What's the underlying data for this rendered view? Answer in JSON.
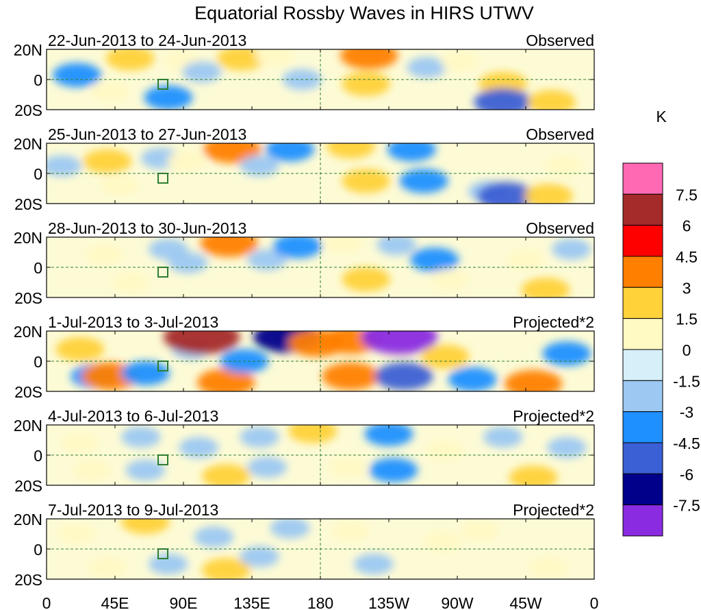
{
  "chart_data": {
    "type": "heatmap",
    "title": "Equatorial Rossby Waves in HIRS UTWV",
    "units": "K",
    "x_ticks": [
      "0",
      "45E",
      "90E",
      "135E",
      "180",
      "135W",
      "90W",
      "45W",
      "0"
    ],
    "y_ticks": [
      "20N",
      "0",
      "20S"
    ],
    "xlim": [
      0,
      360
    ],
    "ylim": [
      -20,
      20
    ],
    "colorbar": {
      "levels": [
        "-7.5",
        "-6",
        "-4.5",
        "-3",
        "-1.5",
        "0",
        "1.5",
        "3",
        "4.5",
        "6",
        "7.5"
      ],
      "colors": [
        "#8a2be2",
        "#00008b",
        "#3b5fd4",
        "#1e90ff",
        "#9cc8f2",
        "#d6f0fa",
        "#fff9c4",
        "#ffd23a",
        "#ff7f00",
        "#ff0000",
        "#a52a2a",
        "#ff69b4"
      ]
    },
    "panels": [
      {
        "date_range": "22-Jun-2013 to 24-Jun-2013",
        "label": "Observed",
        "blobs": [
          {
            "lon": 20,
            "lat": 3,
            "value": -3
          },
          {
            "lon": 42,
            "lat": -8,
            "value": 1.5
          },
          {
            "lon": 55,
            "lat": 14,
            "value": 3
          },
          {
            "lon": 80,
            "lat": -12,
            "value": -3
          },
          {
            "lon": 90,
            "lat": 12,
            "value": 1.5
          },
          {
            "lon": 102,
            "lat": 5,
            "value": -1.5
          },
          {
            "lon": 128,
            "lat": 14,
            "value": 3
          },
          {
            "lon": 150,
            "lat": 16,
            "value": 1.5
          },
          {
            "lon": 168,
            "lat": 0,
            "value": -1.5
          },
          {
            "lon": 210,
            "lat": -3,
            "value": 3
          },
          {
            "lon": 212,
            "lat": 16,
            "value": 4.5
          },
          {
            "lon": 250,
            "lat": 8,
            "value": -1.5
          },
          {
            "lon": 272,
            "lat": 12,
            "value": 1.5
          },
          {
            "lon": 300,
            "lat": -3,
            "value": 3
          },
          {
            "lon": 300,
            "lat": -15,
            "value": -4.5
          },
          {
            "lon": 332,
            "lat": -15,
            "value": 3
          }
        ]
      },
      {
        "date_range": "25-Jun-2013 to 27-Jun-2013",
        "label": "Observed",
        "blobs": [
          {
            "lon": 10,
            "lat": 5,
            "value": -1.5
          },
          {
            "lon": 40,
            "lat": 8,
            "value": 3
          },
          {
            "lon": 48,
            "lat": -8,
            "value": 1.5
          },
          {
            "lon": 75,
            "lat": 10,
            "value": -1.5
          },
          {
            "lon": 92,
            "lat": 8,
            "value": 1.5
          },
          {
            "lon": 122,
            "lat": 16,
            "value": 4.5
          },
          {
            "lon": 140,
            "lat": 5,
            "value": -1.5
          },
          {
            "lon": 160,
            "lat": 16,
            "value": -3
          },
          {
            "lon": 200,
            "lat": 18,
            "value": 3
          },
          {
            "lon": 210,
            "lat": -5,
            "value": 3
          },
          {
            "lon": 240,
            "lat": 16,
            "value": -3
          },
          {
            "lon": 248,
            "lat": -5,
            "value": -3
          },
          {
            "lon": 290,
            "lat": -12,
            "value": -1.5
          },
          {
            "lon": 302,
            "lat": -15,
            "value": -4.5
          },
          {
            "lon": 330,
            "lat": -15,
            "value": 3
          },
          {
            "lon": 340,
            "lat": 5,
            "value": 1.5
          }
        ]
      },
      {
        "date_range": "28-Jun-2013 to 30-Jun-2013",
        "label": "Observed",
        "blobs": [
          {
            "lon": 38,
            "lat": 8,
            "value": 1.5
          },
          {
            "lon": 55,
            "lat": -10,
            "value": 1.5
          },
          {
            "lon": 80,
            "lat": 12,
            "value": -1.5
          },
          {
            "lon": 93,
            "lat": 3,
            "value": -1.5
          },
          {
            "lon": 120,
            "lat": 16,
            "value": 4.5
          },
          {
            "lon": 145,
            "lat": 5,
            "value": -1.5
          },
          {
            "lon": 165,
            "lat": 14,
            "value": -3
          },
          {
            "lon": 195,
            "lat": 16,
            "value": 1.5
          },
          {
            "lon": 210,
            "lat": -8,
            "value": 3
          },
          {
            "lon": 230,
            "lat": 15,
            "value": -1.5
          },
          {
            "lon": 255,
            "lat": 5,
            "value": -3
          },
          {
            "lon": 265,
            "lat": -8,
            "value": 1.5
          },
          {
            "lon": 315,
            "lat": 5,
            "value": 1.5
          },
          {
            "lon": 328,
            "lat": -15,
            "value": 3
          },
          {
            "lon": 345,
            "lat": 12,
            "value": -1.5
          }
        ]
      },
      {
        "date_range": "1-Jul-2013 to 3-Jul-2013",
        "label": "Projected*2",
        "blobs": [
          {
            "lon": 22,
            "lat": 8,
            "value": 3
          },
          {
            "lon": 32,
            "lat": -10,
            "value": -3
          },
          {
            "lon": 42,
            "lat": -10,
            "value": 4.5
          },
          {
            "lon": 65,
            "lat": -8,
            "value": -3
          },
          {
            "lon": 95,
            "lat": 8,
            "value": -1.5
          },
          {
            "lon": 102,
            "lat": 16,
            "value": 7.5
          },
          {
            "lon": 118,
            "lat": -14,
            "value": 4.5
          },
          {
            "lon": 130,
            "lat": 0,
            "value": -3
          },
          {
            "lon": 158,
            "lat": 16,
            "value": -6
          },
          {
            "lon": 178,
            "lat": 12,
            "value": 4.5
          },
          {
            "lon": 200,
            "lat": 14,
            "value": 4.5
          },
          {
            "lon": 200,
            "lat": -10,
            "value": 4.5
          },
          {
            "lon": 232,
            "lat": 16,
            "value": -7.5
          },
          {
            "lon": 235,
            "lat": -10,
            "value": -4.5
          },
          {
            "lon": 262,
            "lat": 3,
            "value": 3
          },
          {
            "lon": 280,
            "lat": -12,
            "value": -3
          },
          {
            "lon": 320,
            "lat": -15,
            "value": 4.5
          },
          {
            "lon": 342,
            "lat": 5,
            "value": -3
          }
        ]
      },
      {
        "date_range": "4-Jul-2013 to 6-Jul-2013",
        "label": "Projected*2",
        "blobs": [
          {
            "lon": 22,
            "lat": 8,
            "value": 1.5
          },
          {
            "lon": 30,
            "lat": -10,
            "value": 1.5
          },
          {
            "lon": 62,
            "lat": 12,
            "value": -1.5
          },
          {
            "lon": 65,
            "lat": -10,
            "value": -1.5
          },
          {
            "lon": 100,
            "lat": 5,
            "value": -1.5
          },
          {
            "lon": 118,
            "lat": -14,
            "value": 3
          },
          {
            "lon": 140,
            "lat": 12,
            "value": -1.5
          },
          {
            "lon": 145,
            "lat": -8,
            "value": -1.5
          },
          {
            "lon": 175,
            "lat": 16,
            "value": 3
          },
          {
            "lon": 198,
            "lat": -8,
            "value": 1.5
          },
          {
            "lon": 225,
            "lat": 14,
            "value": -3
          },
          {
            "lon": 228,
            "lat": -10,
            "value": -3
          },
          {
            "lon": 262,
            "lat": 3,
            "value": 1.5
          },
          {
            "lon": 300,
            "lat": 12,
            "value": -1.5
          },
          {
            "lon": 320,
            "lat": -15,
            "value": 3
          },
          {
            "lon": 342,
            "lat": 5,
            "value": -1.5
          }
        ]
      },
      {
        "date_range": "7-Jul-2013 to 9-Jul-2013",
        "label": "Projected*2",
        "blobs": [
          {
            "lon": 20,
            "lat": 10,
            "value": 1.5
          },
          {
            "lon": 40,
            "lat": -12,
            "value": 1.5
          },
          {
            "lon": 65,
            "lat": 18,
            "value": 3
          },
          {
            "lon": 80,
            "lat": -10,
            "value": -1.5
          },
          {
            "lon": 110,
            "lat": 8,
            "value": -1.5
          },
          {
            "lon": 118,
            "lat": -14,
            "value": 3
          },
          {
            "lon": 140,
            "lat": -5,
            "value": -1.5
          },
          {
            "lon": 160,
            "lat": 14,
            "value": -1.5
          },
          {
            "lon": 200,
            "lat": 12,
            "value": 1.5
          },
          {
            "lon": 215,
            "lat": -10,
            "value": -1.5
          },
          {
            "lon": 260,
            "lat": 5,
            "value": 1.5
          },
          {
            "lon": 285,
            "lat": 12,
            "value": 1.5
          },
          {
            "lon": 330,
            "lat": -12,
            "value": 1.5
          }
        ]
      }
    ]
  }
}
